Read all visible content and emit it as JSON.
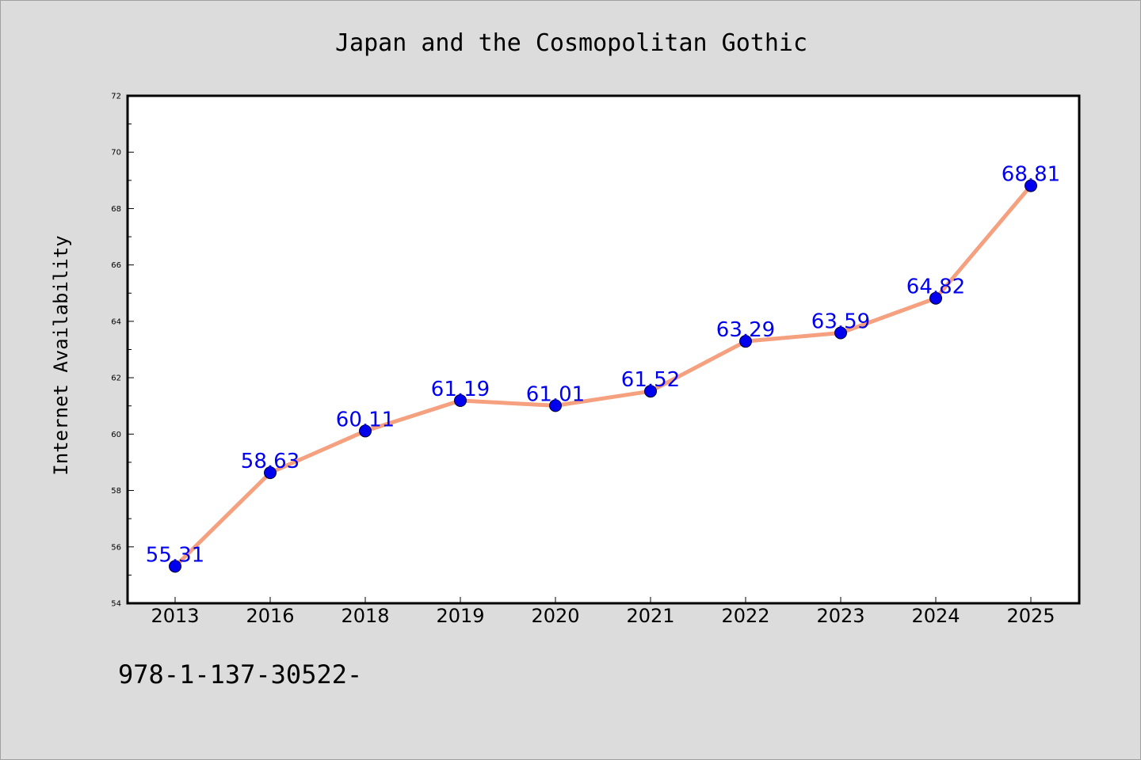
{
  "chart_data": {
    "type": "line",
    "title": "Japan and the Cosmopolitan Gothic",
    "xlabel": "",
    "ylabel": "Internet Availability",
    "categories": [
      "2013",
      "2016",
      "2018",
      "2019",
      "2020",
      "2021",
      "2022",
      "2023",
      "2024",
      "2025"
    ],
    "series": [
      {
        "values": [
          55.31,
          58.63,
          60.11,
          61.19,
          61.01,
          61.52,
          63.29,
          63.59,
          64.82,
          68.81
        ],
        "data_labels": [
          "55.31",
          "58.63",
          "60.11",
          "61.19",
          "61.01",
          "61.52",
          "63.29",
          "63.59",
          "64.82",
          "68.81"
        ]
      }
    ],
    "ylim": [
      54,
      72
    ],
    "yticks": [
      "54",
      "56",
      "58",
      "60",
      "62",
      "64",
      "66",
      "68",
      "70",
      "72"
    ],
    "grid": false,
    "legend": "none",
    "line_color": "#f5a07e",
    "marker_color": "#0000ee",
    "label_color": "#0000ee",
    "plot_background": "#ffffff",
    "figure_background": "#dcdcdc"
  },
  "footer": {
    "note": "978-1-137-30522-"
  }
}
